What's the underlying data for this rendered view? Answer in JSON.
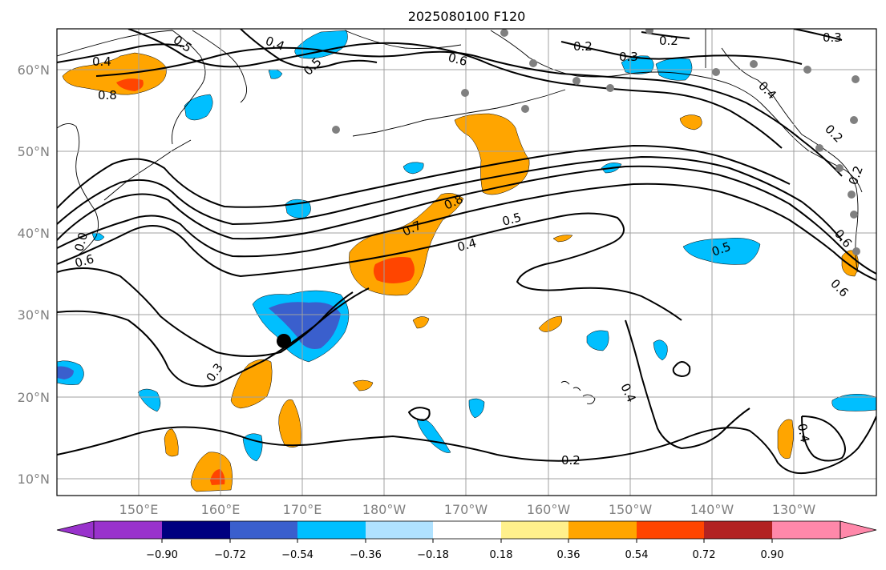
{
  "title": "2025080100 F120",
  "lat_labels": [
    "60°N",
    "50°N",
    "40°N",
    "30°N",
    "20°N",
    "10°N"
  ],
  "lon_labels": [
    "150°E",
    "160°E",
    "170°E",
    "180°W",
    "170°W",
    "160°W",
    "150°W",
    "140°W",
    "130°W"
  ],
  "contour_labels": [
    "0.5",
    "0.4",
    "0.4",
    "0.8",
    "0.5",
    "0.6",
    "0.2",
    "0.2",
    "0.3",
    "0.3",
    "0.4",
    "0.2",
    "0.2",
    "0.8",
    "0.7",
    "0.5",
    "0.4",
    "0.5",
    "0.6",
    "0.0",
    "0.6",
    "0.3",
    "0.4",
    "0.4",
    "0.2",
    "0.6"
  ],
  "colorbar": {
    "ticks": [
      "−0.90",
      "−0.72",
      "−0.54",
      "−0.36",
      "−0.18",
      "0.18",
      "0.36",
      "0.54",
      "0.72",
      "0.90"
    ],
    "colors": [
      "#9932cc",
      "#000080",
      "#3a5fcd",
      "#00bfff",
      "#b0e2ff",
      "#ffffff",
      "#fff08c",
      "#ffa500",
      "#ff4500",
      "#b22222",
      "#ff88aa"
    ]
  },
  "colors": {
    "orange": "#ffa500",
    "red_orange": "#ff4500",
    "royal_blue": "#3a5fcd",
    "deep_sky_blue": "#00bfff",
    "light_sky_blue": "#b0e2ff",
    "contour": "#000000",
    "station_dots": "#808080"
  },
  "map": {
    "lon_range": [
      "140°E",
      "120°W"
    ],
    "lat_range": [
      "8°N",
      "65°N"
    ],
    "projection": "plate carree",
    "grid": true
  }
}
